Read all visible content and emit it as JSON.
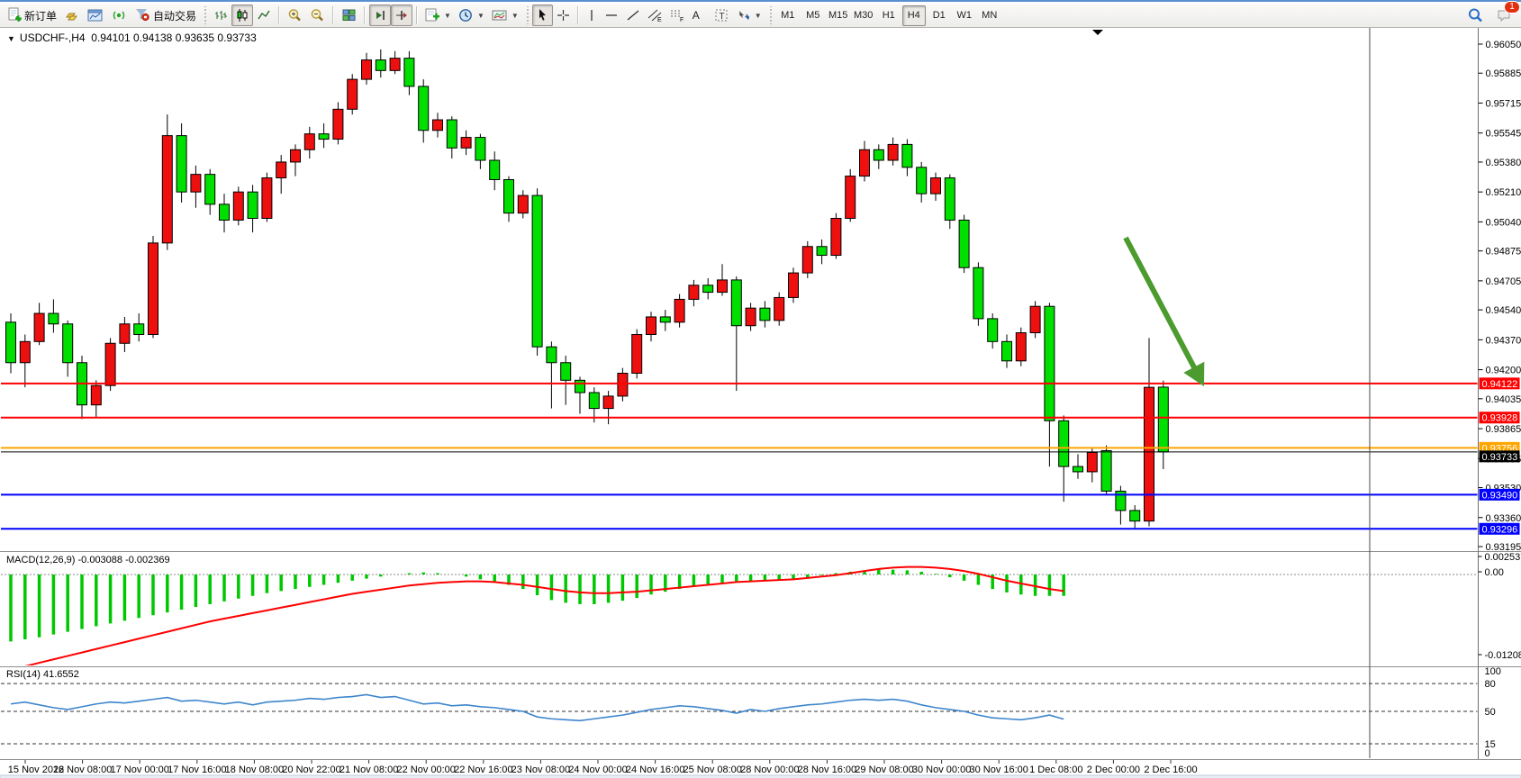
{
  "toolbar": {
    "new_order_label": "新订单",
    "autotrading_label": "自动交易",
    "timeframes": [
      "M1",
      "M5",
      "M15",
      "M30",
      "H1",
      "H4",
      "D1",
      "W1",
      "MN"
    ],
    "active_timeframe": "H4",
    "notification_badge": "1",
    "tool_glyphs": {
      "channel": "E",
      "fibonacci": "F",
      "text": "A",
      "label": "T"
    },
    "icon_names": [
      "new-order-icon",
      "gold-icon",
      "chart-window-icon",
      "signals-icon",
      "autotrading-icon",
      "bar-chart-icon",
      "candlestick-chart-icon",
      "line-chart-icon",
      "zoom-in-icon",
      "zoom-out-icon",
      "tile-windows-icon",
      "shift-end-icon",
      "auto-scroll-icon",
      "indicators-icon",
      "periods-icon",
      "templates-icon",
      "cursor-icon",
      "crosshair-icon",
      "vertical-line-icon",
      "horizontal-line-icon",
      "trendline-icon",
      "equidistant-channel-icon",
      "fibonacci-icon",
      "text-icon",
      "text-label-icon",
      "arrows-icon",
      "search-icon",
      "notifications-icon"
    ]
  },
  "chart": {
    "symbol_header": "USDCHF-,H4",
    "ohlc_header": "0.94101 0.94138 0.93635 0.93733",
    "price_ticks": [
      "0.96050",
      "0.95885",
      "0.95715",
      "0.95545",
      "0.95380",
      "0.95210",
      "0.95040",
      "0.94875",
      "0.94705",
      "0.94540",
      "0.94370",
      "0.94200",
      "0.94035",
      "0.93865",
      "0.93695",
      "0.93530",
      "0.93360",
      "0.93195"
    ],
    "price_axis": {
      "max": 0.9605,
      "min": 0.93195
    },
    "hlines": [
      {
        "price": 0.94122,
        "label": "0.94122",
        "color": "#FF0000"
      },
      {
        "price": 0.93928,
        "label": "0.93928",
        "color": "#FF0000"
      },
      {
        "price": 0.93756,
        "label": "0.93756",
        "color": "#FFA500"
      },
      {
        "price": 0.9349,
        "label": "0.93490",
        "color": "#0000FF"
      },
      {
        "price": 0.93296,
        "label": "0.93296",
        "color": "#0000FF"
      }
    ],
    "current_price": {
      "value": 0.93733,
      "label": "0.93733",
      "color": "#000000"
    },
    "colors": {
      "bull": "#EE0F0F",
      "bear": "#00E000",
      "wick": "#000000",
      "arrow": "#4C9B2F",
      "rsi_line": "#3E86CC",
      "macd_hist": "#00C800",
      "macd_signal": "#FF0000"
    },
    "date_labels": [
      "15 Nov 2022",
      "16 Nov 08:00",
      "17 Nov 00:00",
      "17 Nov 16:00",
      "18 Nov 08:00",
      "20 Nov 22:00",
      "21 Nov 08:00",
      "22 Nov 00:00",
      "22 Nov 16:00",
      "23 Nov 08:00",
      "24 Nov 00:00",
      "24 Nov 16:00",
      "25 Nov 08:00",
      "28 Nov 00:00",
      "28 Nov 16:00",
      "29 Nov 08:00",
      "30 Nov 00:00",
      "30 Nov 16:00",
      "1 Dec 08:00",
      "2 Dec 00:00",
      "2 Dec 16:00"
    ],
    "candles": [
      [
        0.9447,
        0.9452,
        0.9418,
        0.9424
      ],
      [
        0.9424,
        0.944,
        0.941,
        0.9436
      ],
      [
        0.9436,
        0.9458,
        0.9434,
        0.9452
      ],
      [
        0.9452,
        0.946,
        0.9441,
        0.9446
      ],
      [
        0.9446,
        0.9448,
        0.9416,
        0.9424
      ],
      [
        0.9424,
        0.9428,
        0.9392,
        0.94
      ],
      [
        0.94,
        0.9414,
        0.9393,
        0.9411
      ],
      [
        0.9411,
        0.9438,
        0.9408,
        0.9435
      ],
      [
        0.9435,
        0.945,
        0.943,
        0.9446
      ],
      [
        0.9446,
        0.9452,
        0.9436,
        0.944
      ],
      [
        0.944,
        0.9496,
        0.9438,
        0.9492
      ],
      [
        0.9492,
        0.9565,
        0.9488,
        0.9553
      ],
      [
        0.9553,
        0.956,
        0.9515,
        0.9521
      ],
      [
        0.9521,
        0.9536,
        0.9512,
        0.9531
      ],
      [
        0.9531,
        0.9534,
        0.9508,
        0.9514
      ],
      [
        0.9514,
        0.952,
        0.9498,
        0.9505
      ],
      [
        0.9505,
        0.9524,
        0.9502,
        0.9521
      ],
      [
        0.9521,
        0.9525,
        0.9498,
        0.9506
      ],
      [
        0.9506,
        0.9532,
        0.9504,
        0.9529
      ],
      [
        0.9529,
        0.9542,
        0.952,
        0.9538
      ],
      [
        0.9538,
        0.9548,
        0.953,
        0.9545
      ],
      [
        0.9545,
        0.9558,
        0.954,
        0.9554
      ],
      [
        0.9554,
        0.956,
        0.9546,
        0.9551
      ],
      [
        0.9551,
        0.9572,
        0.9548,
        0.9568
      ],
      [
        0.9568,
        0.9588,
        0.9565,
        0.9585
      ],
      [
        0.9585,
        0.96,
        0.9582,
        0.9596
      ],
      [
        0.9596,
        0.9602,
        0.9586,
        0.959
      ],
      [
        0.959,
        0.9601,
        0.9588,
        0.9597
      ],
      [
        0.9597,
        0.9601,
        0.9576,
        0.9581
      ],
      [
        0.9581,
        0.9585,
        0.9549,
        0.9556
      ],
      [
        0.9556,
        0.9566,
        0.9552,
        0.9562
      ],
      [
        0.9562,
        0.9564,
        0.954,
        0.9546
      ],
      [
        0.9546,
        0.9556,
        0.9542,
        0.9552
      ],
      [
        0.9552,
        0.9554,
        0.9534,
        0.9539
      ],
      [
        0.9539,
        0.9544,
        0.9522,
        0.9528
      ],
      [
        0.9528,
        0.953,
        0.9504,
        0.9509
      ],
      [
        0.9509,
        0.9522,
        0.9506,
        0.9519
      ],
      [
        0.9519,
        0.9523,
        0.9428,
        0.9433
      ],
      [
        0.9433,
        0.9436,
        0.9398,
        0.9424
      ],
      [
        0.9424,
        0.9428,
        0.94,
        0.9414
      ],
      [
        0.9414,
        0.9416,
        0.9395,
        0.9407
      ],
      [
        0.9407,
        0.941,
        0.939,
        0.9398
      ],
      [
        0.9398,
        0.9408,
        0.9389,
        0.9405
      ],
      [
        0.9405,
        0.9421,
        0.9402,
        0.9418
      ],
      [
        0.9418,
        0.9443,
        0.9415,
        0.944
      ],
      [
        0.944,
        0.9453,
        0.9436,
        0.945
      ],
      [
        0.945,
        0.9454,
        0.9442,
        0.9447
      ],
      [
        0.9447,
        0.9463,
        0.9444,
        0.946
      ],
      [
        0.946,
        0.9471,
        0.9456,
        0.9468
      ],
      [
        0.9468,
        0.9472,
        0.946,
        0.9464
      ],
      [
        0.9464,
        0.948,
        0.9462,
        0.9471
      ],
      [
        0.9471,
        0.9473,
        0.9408,
        0.9445
      ],
      [
        0.9445,
        0.9458,
        0.9442,
        0.9455
      ],
      [
        0.9455,
        0.9459,
        0.9444,
        0.9448
      ],
      [
        0.9448,
        0.9464,
        0.9445,
        0.9461
      ],
      [
        0.9461,
        0.9478,
        0.9458,
        0.9475
      ],
      [
        0.9475,
        0.9493,
        0.9472,
        0.949
      ],
      [
        0.949,
        0.9494,
        0.948,
        0.9485
      ],
      [
        0.9485,
        0.9509,
        0.9483,
        0.9506
      ],
      [
        0.9506,
        0.9534,
        0.9504,
        0.953
      ],
      [
        0.953,
        0.955,
        0.9527,
        0.9545
      ],
      [
        0.9545,
        0.9548,
        0.9534,
        0.9539
      ],
      [
        0.9539,
        0.9552,
        0.9536,
        0.9548
      ],
      [
        0.9548,
        0.9551,
        0.953,
        0.9535
      ],
      [
        0.9535,
        0.9538,
        0.9515,
        0.952
      ],
      [
        0.952,
        0.9532,
        0.9516,
        0.9529
      ],
      [
        0.9529,
        0.9531,
        0.95,
        0.9505
      ],
      [
        0.9505,
        0.9508,
        0.9475,
        0.9478
      ],
      [
        0.9478,
        0.9481,
        0.9445,
        0.9449
      ],
      [
        0.9449,
        0.9452,
        0.9432,
        0.9436
      ],
      [
        0.9436,
        0.944,
        0.9421,
        0.9425
      ],
      [
        0.9425,
        0.9444,
        0.9422,
        0.9441
      ],
      [
        0.9441,
        0.9459,
        0.9438,
        0.9456
      ],
      [
        0.9456,
        0.9458,
        0.9365,
        0.9391
      ],
      [
        0.9391,
        0.9394,
        0.9345,
        0.9365
      ],
      [
        0.9365,
        0.9372,
        0.9358,
        0.9362
      ],
      [
        0.9362,
        0.9376,
        0.9356,
        0.9373
      ],
      [
        0.9374,
        0.9377,
        0.9349,
        0.9351
      ],
      [
        0.9351,
        0.9354,
        0.9332,
        0.934
      ],
      [
        0.934,
        0.9343,
        0.933,
        0.9334
      ],
      [
        0.9334,
        0.9438,
        0.9331,
        0.941
      ],
      [
        0.94101,
        0.94138,
        0.93635,
        0.93733
      ]
    ]
  },
  "macd": {
    "label": "MACD(12,26,9)",
    "values_text": "-0.003088 -0.002369",
    "axis_ticks": [
      "0.002537",
      "0.00",
      "-0.01208"
    ],
    "histogram": [
      -0.0097,
      -0.0094,
      -0.0091,
      -0.0087,
      -0.0083,
      -0.0079,
      -0.0075,
      -0.0071,
      -0.0067,
      -0.0063,
      -0.0059,
      -0.0055,
      -0.0051,
      -0.0047,
      -0.0043,
      -0.0039,
      -0.0035,
      -0.0031,
      -0.0027,
      -0.0024,
      -0.0021,
      -0.0018,
      -0.0015,
      -0.0012,
      -0.0009,
      -0.0006,
      -0.0003,
      0.0,
      0.0002,
      0.0003,
      0.0002,
      0.0,
      -0.0003,
      -0.0007,
      -0.0011,
      -0.0015,
      -0.0021,
      -0.003,
      -0.0037,
      -0.0041,
      -0.0043,
      -0.0043,
      -0.0041,
      -0.0038,
      -0.0034,
      -0.0029,
      -0.0025,
      -0.0021,
      -0.0017,
      -0.0014,
      -0.0012,
      -0.0011,
      -0.001,
      -0.0009,
      -0.0008,
      -0.0006,
      -0.0004,
      -0.0001,
      0.0002,
      0.0004,
      0.0006,
      0.0007,
      0.0007,
      0.0006,
      0.0004,
      0.0001,
      -0.0004,
      -0.0009,
      -0.0015,
      -0.0021,
      -0.0026,
      -0.0029,
      -0.0031,
      -0.0031,
      -0.0031
    ],
    "signal": [
      -0.0138,
      -0.0133,
      -0.0128,
      -0.0123,
      -0.0118,
      -0.0113,
      -0.0108,
      -0.0103,
      -0.0098,
      -0.0093,
      -0.0088,
      -0.0083,
      -0.0078,
      -0.0073,
      -0.0068,
      -0.0064,
      -0.006,
      -0.0056,
      -0.0052,
      -0.0048,
      -0.0044,
      -0.004,
      -0.0036,
      -0.0032,
      -0.0028,
      -0.0025,
      -0.0022,
      -0.0019,
      -0.0016,
      -0.0014,
      -0.0012,
      -0.0011,
      -0.001,
      -0.001,
      -0.0011,
      -0.0013,
      -0.0015,
      -0.0018,
      -0.0021,
      -0.0024,
      -0.0026,
      -0.0027,
      -0.0027,
      -0.0026,
      -0.0025,
      -0.0023,
      -0.0021,
      -0.0019,
      -0.0017,
      -0.0015,
      -0.0013,
      -0.0011,
      -0.001,
      -0.0009,
      -0.0008,
      -0.0007,
      -0.0005,
      -0.0003,
      -0.0001,
      0.0002,
      0.0005,
      0.0008,
      0.001,
      0.0011,
      0.0011,
      0.001,
      0.0008,
      0.0005,
      0.0001,
      -0.0004,
      -0.0009,
      -0.0013,
      -0.0017,
      -0.0021,
      -0.0024
    ]
  },
  "rsi": {
    "label": "RSI(14)",
    "value_text": "41.6552",
    "axis_ticks": [
      "100",
      "80",
      "50",
      "15",
      "0"
    ],
    "levels": [
      80,
      50,
      15
    ],
    "values": [
      58,
      60,
      57,
      54,
      52,
      55,
      58,
      60,
      59,
      61,
      63,
      65,
      61,
      62,
      60,
      58,
      60,
      57,
      60,
      61,
      62,
      64,
      63,
      65,
      66,
      68,
      65,
      66,
      62,
      58,
      59,
      56,
      57,
      55,
      54,
      52,
      50,
      44,
      42,
      41,
      40,
      42,
      44,
      46,
      49,
      52,
      54,
      56,
      55,
      53,
      51,
      48,
      52,
      50,
      53,
      55,
      57,
      58,
      60,
      62,
      63,
      62,
      63,
      61,
      57,
      54,
      52,
      50,
      46,
      43,
      42,
      41,
      43,
      46,
      41.66
    ]
  }
}
